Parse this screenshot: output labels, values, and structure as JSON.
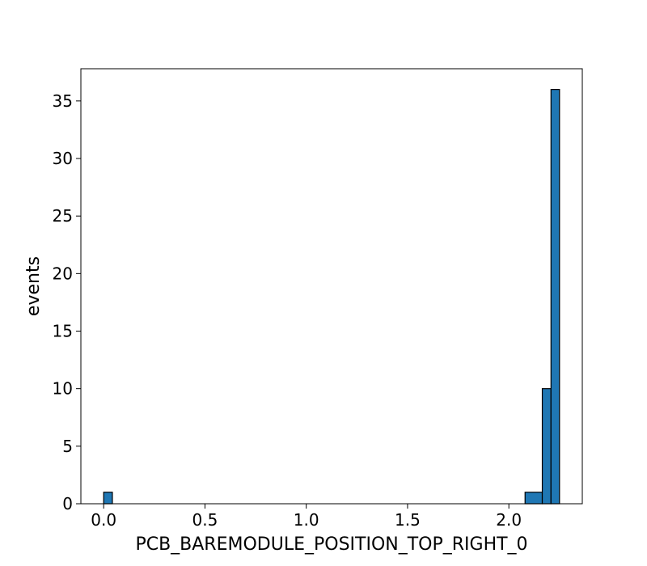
{
  "chart_data": {
    "type": "bar",
    "chart_subtype": "histogram",
    "title": "",
    "xlabel": "PCB_BAREMODULE_POSITION_TOP_RIGHT_0",
    "ylabel": "events",
    "bins": [
      {
        "x0": 0.0,
        "x1": 0.043,
        "count": 1
      },
      {
        "x0": 2.08,
        "x1": 2.165,
        "count": 1
      },
      {
        "x0": 2.165,
        "x1": 2.208,
        "count": 10
      },
      {
        "x0": 2.208,
        "x1": 2.25,
        "count": 36
      }
    ],
    "xlim": [
      -0.1125,
      2.3625
    ],
    "ylim": [
      0,
      37.8
    ],
    "xticks": [
      {
        "value": 0.0,
        "label": "0.0"
      },
      {
        "value": 0.5,
        "label": "0.5"
      },
      {
        "value": 1.0,
        "label": "1.0"
      },
      {
        "value": 1.5,
        "label": "1.5"
      },
      {
        "value": 2.0,
        "label": "2.0"
      }
    ],
    "yticks": [
      {
        "value": 0,
        "label": "0"
      },
      {
        "value": 5,
        "label": "5"
      },
      {
        "value": 10,
        "label": "10"
      },
      {
        "value": 15,
        "label": "15"
      },
      {
        "value": 20,
        "label": "20"
      },
      {
        "value": 25,
        "label": "25"
      },
      {
        "value": 30,
        "label": "30"
      },
      {
        "value": 35,
        "label": "35"
      }
    ],
    "grid": false,
    "legend": "none",
    "colors": {
      "bar_fill": "#1f77b4",
      "bar_edge": "#000000",
      "axes": "#000000"
    }
  }
}
